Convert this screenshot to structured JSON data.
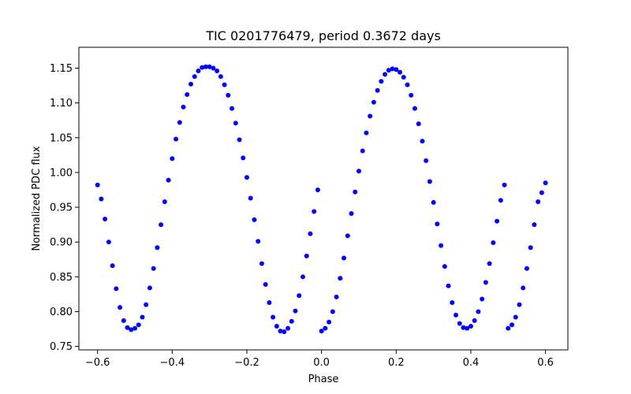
{
  "chart_data": {
    "type": "scatter",
    "title": "TIC 0201776479, period 0.3672 days",
    "xlabel": "Phase",
    "ylabel": "Normalized PDC flux",
    "xlim": [
      -0.65,
      0.66
    ],
    "ylim": [
      0.745,
      1.18
    ],
    "grid": false,
    "marker_color": "#0000ff",
    "x_ticks": [
      -0.6,
      -0.4,
      -0.2,
      0.0,
      0.2,
      0.4,
      0.6
    ],
    "x_tick_labels": [
      "−0.6",
      "−0.4",
      "−0.2",
      "0.0",
      "0.2",
      "0.4",
      "0.6"
    ],
    "y_ticks": [
      0.75,
      0.8,
      0.85,
      0.9,
      0.95,
      1.0,
      1.05,
      1.1,
      1.15
    ],
    "y_tick_labels": [
      "0.75",
      "0.80",
      "0.85",
      "0.90",
      "0.95",
      "1.00",
      "1.05",
      "1.10",
      "1.15"
    ],
    "series": [
      {
        "name": "flux",
        "x": [
          -0.6,
          -0.59,
          -0.58,
          -0.57,
          -0.56,
          -0.55,
          -0.54,
          -0.53,
          -0.52,
          -0.51,
          -0.5,
          -0.49,
          -0.48,
          -0.47,
          -0.46,
          -0.45,
          -0.44,
          -0.43,
          -0.42,
          -0.41,
          -0.4,
          -0.39,
          -0.38,
          -0.37,
          -0.36,
          -0.35,
          -0.34,
          -0.33,
          -0.32,
          -0.31,
          -0.3,
          -0.29,
          -0.28,
          -0.27,
          -0.26,
          -0.25,
          -0.24,
          -0.23,
          -0.22,
          -0.21,
          -0.2,
          -0.19,
          -0.18,
          -0.17,
          -0.16,
          -0.15,
          -0.14,
          -0.13,
          -0.12,
          -0.11,
          -0.1,
          -0.09,
          -0.08,
          -0.07,
          -0.06,
          -0.05,
          -0.04,
          -0.03,
          -0.02,
          -0.01,
          0.0,
          0.01,
          0.02,
          0.03,
          0.04,
          0.05,
          0.06,
          0.07,
          0.08,
          0.09,
          0.1,
          0.11,
          0.12,
          0.13,
          0.14,
          0.15,
          0.16,
          0.17,
          0.18,
          0.19,
          0.2,
          0.21,
          0.22,
          0.23,
          0.24,
          0.25,
          0.26,
          0.27,
          0.28,
          0.29,
          0.3,
          0.31,
          0.32,
          0.33,
          0.34,
          0.35,
          0.36,
          0.37,
          0.38,
          0.39,
          0.4,
          0.41,
          0.42,
          0.43,
          0.44,
          0.45,
          0.46,
          0.47,
          0.48,
          0.49,
          0.5,
          0.51,
          0.52,
          0.53,
          0.54,
          0.55,
          0.56,
          0.57,
          0.58,
          0.59,
          0.6
        ],
        "y": [
          0.982,
          0.962,
          0.933,
          0.9,
          0.866,
          0.833,
          0.806,
          0.787,
          0.777,
          0.774,
          0.776,
          0.781,
          0.792,
          0.81,
          0.834,
          0.862,
          0.892,
          0.925,
          0.958,
          0.989,
          1.02,
          1.048,
          1.072,
          1.094,
          1.112,
          1.127,
          1.138,
          1.146,
          1.151,
          1.152,
          1.152,
          1.15,
          1.146,
          1.138,
          1.126,
          1.111,
          1.092,
          1.071,
          1.047,
          1.021,
          0.993,
          0.963,
          0.932,
          0.901,
          0.869,
          0.839,
          0.813,
          0.792,
          0.779,
          0.772,
          0.771,
          0.776,
          0.786,
          0.801,
          0.823,
          0.85,
          0.88,
          0.912,
          0.944,
          0.975,
          0.772,
          0.776,
          0.785,
          0.8,
          0.821,
          0.848,
          0.877,
          0.909,
          0.941,
          0.972,
          1.002,
          1.031,
          1.057,
          1.081,
          1.101,
          1.118,
          1.131,
          1.141,
          1.147,
          1.149,
          1.148,
          1.144,
          1.137,
          1.126,
          1.111,
          1.092,
          1.07,
          1.045,
          1.017,
          0.987,
          0.957,
          0.926,
          0.895,
          0.865,
          0.837,
          0.813,
          0.795,
          0.783,
          0.777,
          0.776,
          0.779,
          0.787,
          0.8,
          0.818,
          0.842,
          0.869,
          0.899,
          0.93,
          0.96,
          0.982,
          0.776,
          0.781,
          0.792,
          0.81,
          0.834,
          0.862,
          0.892,
          0.925,
          0.958,
          0.971,
          0.985
        ]
      }
    ]
  }
}
